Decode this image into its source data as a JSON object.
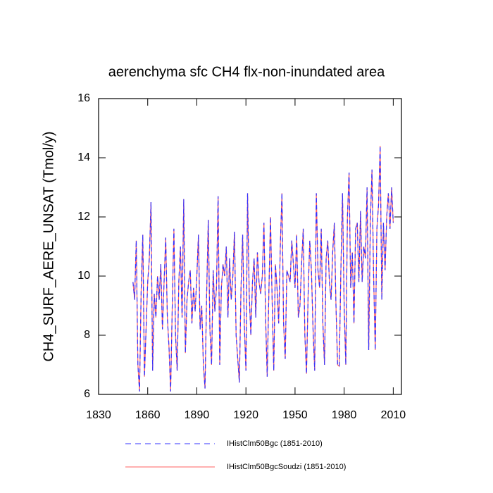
{
  "chart_data": {
    "type": "line",
    "title": "aerenchyma sfc CH4 flx-non-inundated area",
    "ylabel": "CH4_SURF_AERE_UNSAT  (Tmol/y)",
    "xlim": [
      1830,
      2015
    ],
    "ylim": [
      6,
      16
    ],
    "xticks": [
      1830,
      1860,
      1890,
      1920,
      1950,
      1980,
      2010
    ],
    "yticks": [
      6,
      8,
      10,
      12,
      14,
      16
    ],
    "x": [
      1851,
      1852,
      1853,
      1854,
      1855,
      1856,
      1857,
      1858,
      1859,
      1860,
      1861,
      1862,
      1863,
      1864,
      1865,
      1866,
      1867,
      1868,
      1869,
      1870,
      1871,
      1872,
      1873,
      1874,
      1875,
      1876,
      1877,
      1878,
      1879,
      1880,
      1881,
      1882,
      1883,
      1884,
      1885,
      1886,
      1887,
      1888,
      1889,
      1890,
      1891,
      1892,
      1893,
      1894,
      1895,
      1896,
      1897,
      1898,
      1899,
      1900,
      1901,
      1902,
      1903,
      1904,
      1905,
      1906,
      1907,
      1908,
      1909,
      1910,
      1911,
      1912,
      1913,
      1914,
      1915,
      1916,
      1917,
      1918,
      1919,
      1920,
      1921,
      1922,
      1923,
      1924,
      1925,
      1926,
      1927,
      1928,
      1929,
      1930,
      1931,
      1932,
      1933,
      1934,
      1935,
      1936,
      1937,
      1938,
      1939,
      1940,
      1941,
      1942,
      1943,
      1944,
      1945,
      1946,
      1947,
      1948,
      1949,
      1950,
      1951,
      1952,
      1953,
      1954,
      1955,
      1956,
      1957,
      1958,
      1959,
      1960,
      1961,
      1962,
      1963,
      1964,
      1965,
      1966,
      1967,
      1968,
      1969,
      1970,
      1971,
      1972,
      1973,
      1974,
      1975,
      1976,
      1977,
      1978,
      1979,
      1980,
      1981,
      1982,
      1983,
      1984,
      1985,
      1986,
      1987,
      1988,
      1989,
      1990,
      1991,
      1992,
      1993,
      1994,
      1995,
      1996,
      1997,
      1998,
      1999,
      2000,
      2001,
      2002,
      2003,
      2004,
      2005,
      2006,
      2007,
      2008,
      2009,
      2010
    ],
    "series": [
      {
        "name": "IHistClm50BgcSoudzi (1851-2010)",
        "color": "#ff6060",
        "dash": "solid",
        "values": [
          9.8,
          9.2,
          11.2,
          7.0,
          6.1,
          9.5,
          11.4,
          6.6,
          8.2,
          9.8,
          10.6,
          12.5,
          6.8,
          9.4,
          8.6,
          10.0,
          9.2,
          10.4,
          8.2,
          9.8,
          11.3,
          8.6,
          7.6,
          6.1,
          9.0,
          11.6,
          8.0,
          6.8,
          9.8,
          11.0,
          8.6,
          12.6,
          7.4,
          9.2,
          9.8,
          10.2,
          8.4,
          9.6,
          8.8,
          10.0,
          11.4,
          8.2,
          9.0,
          7.0,
          6.2,
          9.4,
          11.9,
          8.2,
          7.0,
          10.2,
          8.8,
          9.6,
          12.7,
          7.0,
          9.6,
          10.4,
          10.0,
          11.0,
          8.6,
          10.6,
          9.2,
          10.0,
          11.5,
          8.0,
          7.2,
          6.4,
          9.6,
          11.4,
          8.4,
          6.8,
          12.8,
          9.4,
          8.0,
          9.8,
          10.6,
          8.6,
          10.8,
          9.8,
          9.4,
          10.0,
          11.8,
          8.6,
          6.6,
          9.4,
          12.0,
          9.2,
          6.8,
          10.4,
          9.6,
          8.4,
          11.0,
          12.8,
          8.4,
          7.2,
          10.2,
          10.0,
          9.8,
          11.2,
          10.4,
          9.6,
          11.4,
          8.6,
          9.0,
          10.4,
          11.6,
          8.0,
          6.7,
          9.4,
          11.2,
          10.2,
          8.2,
          6.8,
          12.8,
          10.2,
          9.6,
          11.6,
          8.4,
          7.0,
          10.6,
          11.2,
          9.8,
          9.2,
          10.8,
          11.8,
          9.0,
          7.0,
          6.95,
          10.2,
          12.8,
          9.0,
          7.0,
          12.0,
          13.5,
          9.6,
          10.8,
          8.4,
          11.6,
          11.8,
          9.8,
          12.2,
          9.8,
          11.0,
          10.6,
          13.0,
          7.5,
          11.8,
          13.6,
          10.0,
          7.5,
          11.6,
          12.4,
          14.4,
          9.2,
          11.8,
          10.2,
          12.0,
          12.8,
          11.6,
          13.0,
          11.8
        ]
      },
      {
        "name": "IHistClm50Bgc (1851-2010)",
        "color": "#3333ff",
        "dash": "dashed",
        "values": [
          9.8,
          9.2,
          11.2,
          7.0,
          6.1,
          9.5,
          11.4,
          6.6,
          8.2,
          9.8,
          10.6,
          12.5,
          6.8,
          9.4,
          8.6,
          10.0,
          9.2,
          10.4,
          8.2,
          9.8,
          11.3,
          8.6,
          7.6,
          6.1,
          9.0,
          11.6,
          8.0,
          6.8,
          9.8,
          11.0,
          8.6,
          12.6,
          7.4,
          9.2,
          9.8,
          10.2,
          8.4,
          9.6,
          8.8,
          10.0,
          11.4,
          8.2,
          9.0,
          7.0,
          6.2,
          9.4,
          11.9,
          8.2,
          7.0,
          10.2,
          8.8,
          9.6,
          12.7,
          7.0,
          9.6,
          10.4,
          10.0,
          11.0,
          8.6,
          10.6,
          9.2,
          10.0,
          11.5,
          8.0,
          7.2,
          6.4,
          9.6,
          11.4,
          8.4,
          6.8,
          12.8,
          9.4,
          8.0,
          9.8,
          10.6,
          8.6,
          10.8,
          9.8,
          9.4,
          10.0,
          11.8,
          8.6,
          6.6,
          9.4,
          12.0,
          9.2,
          6.8,
          10.4,
          9.6,
          8.4,
          11.0,
          12.8,
          8.4,
          7.2,
          10.2,
          10.0,
          9.8,
          11.2,
          10.4,
          9.6,
          11.4,
          8.6,
          9.0,
          10.4,
          11.6,
          8.0,
          6.7,
          9.4,
          11.2,
          10.2,
          8.2,
          6.8,
          12.8,
          10.2,
          9.6,
          11.6,
          8.4,
          7.0,
          10.6,
          11.2,
          9.8,
          9.2,
          10.8,
          11.8,
          9.0,
          7.0,
          6.95,
          10.2,
          12.8,
          9.0,
          7.0,
          12.0,
          13.5,
          9.6,
          10.8,
          8.4,
          11.6,
          11.8,
          9.8,
          12.2,
          9.8,
          11.0,
          10.6,
          13.0,
          7.5,
          11.8,
          13.6,
          10.0,
          7.5,
          11.6,
          12.4,
          14.4,
          9.2,
          11.8,
          10.2,
          12.0,
          12.8,
          11.6,
          13.0,
          11.8
        ]
      }
    ]
  }
}
